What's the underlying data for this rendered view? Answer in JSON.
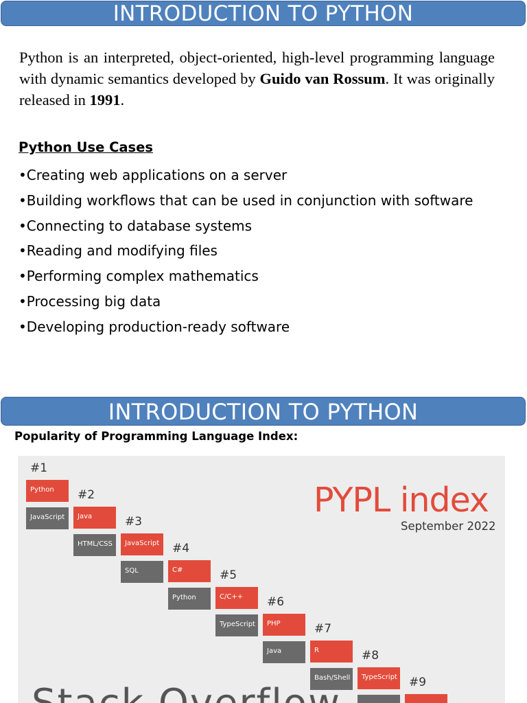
{
  "section1": {
    "banner_title": "INTRODUCTION TO PYTHON",
    "intro": {
      "part1": "Python is an interpreted, object-oriented, high-level programming language with dynamic semantics developed by ",
      "author": "Guido van Rossum",
      "part2": ". It was originally released in ",
      "year": "1991",
      "part3": "."
    },
    "use_cases_heading": "Python Use Cases",
    "use_cases": [
      "•Creating web applications on a server",
      "•Building workflows that can be used in conjunction with software",
      "•Connecting to database systems",
      "•Reading and modifying files",
      "•Performing complex mathematics",
      "•Processing big data",
      "•Developing production-ready software"
    ]
  },
  "section2": {
    "banner_title": "INTRODUCTION TO PYTHON",
    "popularity_heading": "Popularity of Programming Language Index:",
    "pypl": {
      "title": "PYPL index",
      "date": "September 2022",
      "ranks": [
        {
          "rank": "#1",
          "top": "Python",
          "bottom": "JavaScript"
        },
        {
          "rank": "#2",
          "top": "Java",
          "bottom": "HTML/CSS"
        },
        {
          "rank": "#3",
          "top": "JavaScript",
          "bottom": "SQL"
        },
        {
          "rank": "#4",
          "top": "C#",
          "bottom": "Python"
        },
        {
          "rank": "#5",
          "top": "C/C++",
          "bottom": "TypeScript"
        },
        {
          "rank": "#6",
          "top": "PHP",
          "bottom": "Java"
        },
        {
          "rank": "#7",
          "top": "R",
          "bottom": "Bash/Shell"
        },
        {
          "rank": "#8",
          "top": "TypeScript",
          "bottom": ""
        },
        {
          "rank": "#9",
          "top": "",
          "bottom": ""
        }
      ],
      "bottom_partial_text": "Stack Overflow"
    },
    "colors": {
      "pypl_red": "#e24b3b",
      "pypl_gray": "#6a6a6a",
      "banner_blue": "#4f81bd"
    }
  }
}
